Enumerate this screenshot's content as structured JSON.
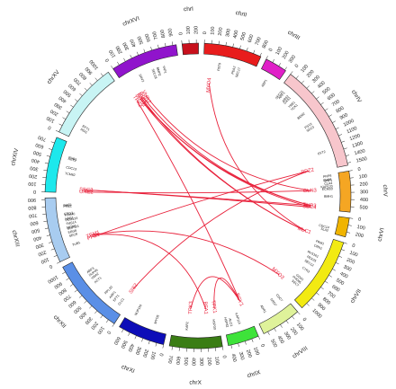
{
  "chromosomes": [
    {
      "name": "chrI",
      "length": 230,
      "color": "#c8101c",
      "ticks": [
        0,
        100,
        200
      ]
    },
    {
      "name": "chrII",
      "length": 813,
      "color": "#e81c1c",
      "ticks": [
        0,
        100,
        200,
        300,
        400,
        500,
        600,
        700,
        800
      ]
    },
    {
      "name": "chrIII",
      "length": 317,
      "color": "#e020c8",
      "ticks": [
        0,
        100,
        200,
        300
      ]
    },
    {
      "name": "chrIV",
      "length": 1532,
      "color": "#f7c6cc",
      "ticks": [
        0,
        100,
        200,
        300,
        400,
        500,
        600,
        700,
        800,
        900,
        1000,
        1100,
        1200,
        1300,
        1400,
        1500
      ]
    },
    {
      "name": "chrV",
      "length": 577,
      "color": "#f5a623",
      "ticks": [
        0,
        100,
        200,
        300,
        400,
        500
      ]
    },
    {
      "name": "chrVI",
      "length": 270,
      "color": "#f0b400",
      "ticks": [
        0,
        100,
        200
      ]
    },
    {
      "name": "chrVII",
      "length": 1091,
      "color": "#f2ea12",
      "ticks": [
        0,
        100,
        200,
        300,
        400,
        500,
        600,
        700,
        800,
        900,
        1000
      ]
    },
    {
      "name": "chrVIII",
      "length": 563,
      "color": "#dff29a",
      "ticks": [
        0,
        100,
        200,
        300,
        400,
        500
      ]
    },
    {
      "name": "chrIX",
      "length": 440,
      "color": "#3ee33a",
      "ticks": [
        0,
        100,
        200,
        300,
        400
      ]
    },
    {
      "name": "chrX",
      "length": 745,
      "color": "#3a7d14",
      "ticks": [
        0,
        100,
        200,
        300,
        400,
        500,
        600,
        700
      ]
    },
    {
      "name": "chrXI",
      "length": 667,
      "color": "#0d0db8",
      "ticks": [
        0,
        100,
        200,
        300,
        400,
        500,
        600
      ]
    },
    {
      "name": "chrXII",
      "length": 1078,
      "color": "#5a8fe6",
      "ticks": [
        0,
        100,
        200,
        300,
        400,
        500,
        600,
        700,
        800,
        900,
        1000
      ]
    },
    {
      "name": "chrXIII",
      "length": 924,
      "color": "#a8ccf0",
      "ticks": [
        0,
        100,
        200,
        300,
        400,
        500,
        600,
        700,
        800,
        900
      ]
    },
    {
      "name": "chrXIV",
      "length": 784,
      "color": "#1de8ec",
      "ticks": [
        0,
        100,
        200,
        300,
        400,
        500,
        600,
        700
      ]
    },
    {
      "name": "chrXV",
      "length": 1091,
      "color": "#c8f4f4",
      "ticks": [
        0,
        100,
        200,
        300,
        400,
        500,
        600,
        700,
        800,
        900,
        1000
      ]
    },
    {
      "name": "chrXVI",
      "length": 948,
      "color": "#9014cc",
      "ticks": [
        0,
        100,
        200,
        300,
        400,
        500,
        600,
        700,
        800,
        900
      ]
    }
  ],
  "red_genes": [
    {
      "text": "MYO4",
      "chr": "chrII",
      "pos": 120
    },
    {
      "text": "MYO2",
      "chr": "chrXVI",
      "pos": 110
    },
    {
      "text": "TPK2",
      "chr": "chrXVI",
      "pos": 40
    },
    {
      "text": "IQG1",
      "chr": "chrXVI",
      "pos": 140
    },
    {
      "text": "RDI1",
      "chr": "chrXVI",
      "pos": 170
    },
    {
      "text": "VHR2",
      "chr": "chrXVI",
      "pos": 230
    },
    {
      "text": "PPZ2",
      "chr": "chrIV",
      "pos": 1490
    },
    {
      "text": "GLN3",
      "chr": "chrV",
      "pos": 250
    },
    {
      "text": "TUB3",
      "chr": "chrV",
      "pos": 530
    },
    {
      "text": "SEC4",
      "chr": "chrV",
      "pos": 560
    },
    {
      "text": "MLC1",
      "chr": "chrVII",
      "pos": 10
    },
    {
      "text": "MYO3",
      "chr": "chrVII",
      "pos": 980
    },
    {
      "text": "BCY1",
      "chr": "chrIX",
      "pos": 60
    },
    {
      "text": "TPK1",
      "chr": "chrX",
      "pos": 40
    },
    {
      "text": "BFA1",
      "chr": "chrX",
      "pos": 200
    },
    {
      "text": "TPK3",
      "chr": "chrX",
      "pos": 480
    },
    {
      "text": "SIS2",
      "chr": "chrXII",
      "pos": 60
    },
    {
      "text": "PPZ1",
      "chr": "chrXIII",
      "pos": 160
    },
    {
      "text": "TEM1",
      "chr": "chrXIII",
      "pos": 200
    },
    {
      "text": "URE2",
      "chr": "chrXIV",
      "pos": 20
    },
    {
      "text": "SEC2",
      "chr": "chrXIV",
      "pos": 60
    }
  ],
  "black_genes": [
    {
      "text": "PET9",
      "chr": "chrII",
      "pos": 260
    },
    {
      "text": "PEA2",
      "chr": "chrII",
      "pos": 500
    },
    {
      "text": "SEC17",
      "chr": "chrII",
      "pos": 580
    },
    {
      "text": "ABP1",
      "chr": "chrIII",
      "pos": 150
    },
    {
      "text": "SEC21",
      "chr": "chrIV",
      "pos": 60
    },
    {
      "text": "ARF1",
      "chr": "chrIV",
      "pos": 100
    },
    {
      "text": "ARF2",
      "chr": "chrIV",
      "pos": 180
    },
    {
      "text": "GAS1",
      "chr": "chrIV",
      "pos": 220
    },
    {
      "text": "YRB1",
      "chr": "chrIV",
      "pos": 320
    },
    {
      "text": "YCK1",
      "chr": "chrIV",
      "pos": 380
    },
    {
      "text": "BEM2",
      "chr": "chrIV",
      "pos": 560
    },
    {
      "text": "PSY2",
      "chr": "chrIV",
      "pos": 760
    },
    {
      "text": "SEC3",
      "chr": "chrIV",
      "pos": 820
    },
    {
      "text": "EFT2",
      "chr": "chrIV",
      "pos": 1250
    },
    {
      "text": "PRP8",
      "chr": "chrV",
      "pos": 30
    },
    {
      "text": "CHO1",
      "chr": "chrV",
      "pos": 90
    },
    {
      "text": "CLA4",
      "chr": "chrV",
      "pos": 150
    },
    {
      "text": "KAP120",
      "chr": "chrV",
      "pos": 200
    },
    {
      "text": "ECM33",
      "chr": "chrV",
      "pos": 240
    },
    {
      "text": "BMH1",
      "chr": "chrV",
      "pos": 360
    },
    {
      "text": "SNF1",
      "chr": "chrV",
      "pos": 100
    },
    {
      "text": "CDC14",
      "chr": "chrVI",
      "pos": 200
    },
    {
      "text": "SLA2",
      "chr": "chrVI",
      "pos": 250
    },
    {
      "text": "PAM1",
      "chr": "chrVII",
      "pos": 120
    },
    {
      "text": "CRN1",
      "chr": "chrVII",
      "pos": 200
    },
    {
      "text": "RVS161",
      "chr": "chrVII",
      "pos": 340
    },
    {
      "text": "PEX25",
      "chr": "chrVII",
      "pos": 420
    },
    {
      "text": "SEC12",
      "chr": "chrVII",
      "pos": 500
    },
    {
      "text": "CYK3",
      "chr": "chrVII",
      "pos": 620
    },
    {
      "text": "GDA1",
      "chr": "chrVII",
      "pos": 780
    },
    {
      "text": "PHO85",
      "chr": "chrVII",
      "pos": 840
    },
    {
      "text": "SEC7",
      "chr": "chrVII",
      "pos": 900
    },
    {
      "text": "CDC7",
      "chr": "chrVIII",
      "pos": 80
    },
    {
      "text": "SRO7",
      "chr": "chrVIII",
      "pos": 200
    },
    {
      "text": "ADR1",
      "chr": "chrVIII",
      "pos": 400
    },
    {
      "text": "KAP114",
      "chr": "chrIX",
      "pos": 200
    },
    {
      "text": "ALO1",
      "chr": "chrIX",
      "pos": 330
    },
    {
      "text": "HSP82",
      "chr": "chrIX",
      "pos": 400
    },
    {
      "text": "HSP30",
      "chr": "chrX",
      "pos": 80
    },
    {
      "text": "KAR2",
      "chr": "chrX",
      "pos": 520
    },
    {
      "text": "MYO5",
      "chr": "chrXI",
      "pos": 200
    },
    {
      "text": "NUP116",
      "chr": "chrXI",
      "pos": 540
    },
    {
      "text": "CLC1",
      "chr": "chrXII",
      "pos": 100
    },
    {
      "text": "EFT1",
      "chr": "chrXII",
      "pos": 200
    },
    {
      "text": "ARP1",
      "chr": "chrXII",
      "pos": 280
    },
    {
      "text": "RPL30",
      "chr": "chrXII",
      "pos": 380
    },
    {
      "text": "ACT1",
      "chr": "chrXII",
      "pos": 620
    },
    {
      "text": "VMA2",
      "chr": "chrXII",
      "pos": 700
    },
    {
      "text": "SUP45",
      "chr": "chrXII",
      "pos": 760
    },
    {
      "text": "ARF3",
      "chr": "chrXII",
      "pos": 820
    },
    {
      "text": "TUB1",
      "chr": "chrXIII",
      "pos": 150
    },
    {
      "text": "SEC8",
      "chr": "chrXIII",
      "pos": 300
    },
    {
      "text": "ERG6",
      "chr": "chrXIII",
      "pos": 360
    },
    {
      "text": "NUP116",
      "chr": "chrXIII",
      "pos": 420
    },
    {
      "text": "MCM1",
      "chr": "chrXIII",
      "pos": 440
    },
    {
      "text": "TMS14",
      "chr": "chrXIII",
      "pos": 500
    },
    {
      "text": "PCM133",
      "chr": "chrXIII",
      "pos": 560
    },
    {
      "text": "NDE1",
      "chr": "chrXIII",
      "pos": 580
    },
    {
      "text": "TOM40",
      "chr": "chrXIII",
      "pos": 640
    },
    {
      "text": "ERG3",
      "chr": "chrXIII",
      "pos": 660
    },
    {
      "text": "PRE1",
      "chr": "chrXIII",
      "pos": 780
    },
    {
      "text": "GAS1",
      "chr": "chrXIII",
      "pos": 800
    },
    {
      "text": "TCM62",
      "chr": "chrXIV",
      "pos": 300
    },
    {
      "text": "CDC13",
      "chr": "chrXIV",
      "pos": 400
    },
    {
      "text": "ACT2",
      "chr": "chrXIV",
      "pos": 540
    },
    {
      "text": "PUB1",
      "chr": "chrXIV",
      "pos": 560
    },
    {
      "text": "RDI1",
      "chr": "chrXV",
      "pos": 180
    },
    {
      "text": "EFT1",
      "chr": "chrXV",
      "pos": 240
    },
    {
      "text": "SRV2",
      "chr": "chrXVI",
      "pos": 300
    },
    {
      "text": "SEC18",
      "chr": "chrXVI",
      "pos": 520
    },
    {
      "text": "BMH2",
      "chr": "chrXVI",
      "pos": 600
    },
    {
      "text": "YAP1",
      "chr": "chrXVI",
      "pos": 700
    }
  ],
  "links": [
    [
      "URE2",
      "GLN3"
    ],
    [
      "SEC2",
      "SEC4"
    ],
    [
      "SEC2",
      "TUB3"
    ],
    [
      "PPZ1",
      "PPZ2"
    ],
    [
      "TEM1",
      "BFA1"
    ],
    [
      "MYO2",
      "SEC4"
    ],
    [
      "MYO2",
      "TUB3"
    ],
    [
      "MYO2",
      "MLC1"
    ],
    [
      "IQG1",
      "MLC1"
    ],
    [
      "VHR2",
      "GLN3"
    ],
    [
      "TPK2",
      "BCY1"
    ],
    [
      "TPK1",
      "BCY1"
    ],
    [
      "TPK3",
      "BCY1"
    ],
    [
      "SIS2",
      "PPZ2"
    ],
    [
      "MYO3",
      "TEM1"
    ],
    [
      "MYO4",
      "MLC1"
    ],
    [
      "RDI1",
      "TUB3"
    ]
  ]
}
